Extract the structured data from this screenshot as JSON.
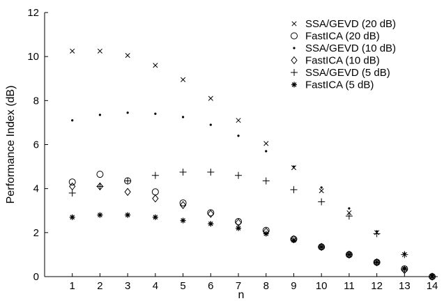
{
  "chart_data": {
    "type": "scatter",
    "xlabel": "n",
    "ylabel": "Performance Index (dB)",
    "xlim": [
      0,
      14.2
    ],
    "ylim": [
      0,
      12
    ],
    "xticks": [
      1,
      2,
      3,
      4,
      5,
      6,
      7,
      8,
      9,
      10,
      11,
      12,
      13,
      14
    ],
    "yticks": [
      0,
      2,
      4,
      6,
      8,
      10,
      12
    ],
    "grid": false,
    "legend_position": "top-right",
    "x": [
      1,
      2,
      3,
      4,
      5,
      6,
      7,
      8,
      9,
      10,
      11,
      12,
      13,
      14
    ],
    "series": [
      {
        "name": "SSA/GEVD (20 dB)",
        "marker": "x",
        "values": [
          10.25,
          10.25,
          10.05,
          9.6,
          8.95,
          8.1,
          7.1,
          6.05,
          4.95,
          3.9,
          2.9,
          2.0,
          1.0,
          0.0
        ]
      },
      {
        "name": "FastICA (20 dB)",
        "marker": "circle",
        "values": [
          4.3,
          4.65,
          4.35,
          3.85,
          3.35,
          2.9,
          2.5,
          2.1,
          1.7,
          1.35,
          1.0,
          0.65,
          0.35,
          0.0
        ]
      },
      {
        "name": "SSA/GEVD (10 dB)",
        "marker": "dot",
        "values": [
          7.1,
          7.35,
          7.45,
          7.4,
          7.25,
          6.9,
          6.4,
          5.7,
          5.0,
          4.05,
          3.1,
          2.05,
          1.05,
          0.05
        ]
      },
      {
        "name": "FastICA (10 dB)",
        "marker": "diamond",
        "values": [
          4.1,
          4.1,
          3.85,
          3.55,
          3.25,
          2.85,
          2.45,
          2.05,
          1.7,
          1.35,
          1.0,
          0.65,
          0.3,
          0.0
        ]
      },
      {
        "name": "SSA/GEVD (5 dB)",
        "marker": "plus",
        "values": [
          3.8,
          4.1,
          4.35,
          4.6,
          4.75,
          4.75,
          4.6,
          4.35,
          3.95,
          3.4,
          2.75,
          1.95,
          1.0,
          0.0
        ]
      },
      {
        "name": "FastICA (5 dB)",
        "marker": "star",
        "values": [
          2.7,
          2.8,
          2.8,
          2.7,
          2.55,
          2.4,
          2.2,
          1.95,
          1.65,
          1.35,
          1.0,
          0.65,
          0.35,
          0.0
        ]
      }
    ]
  }
}
